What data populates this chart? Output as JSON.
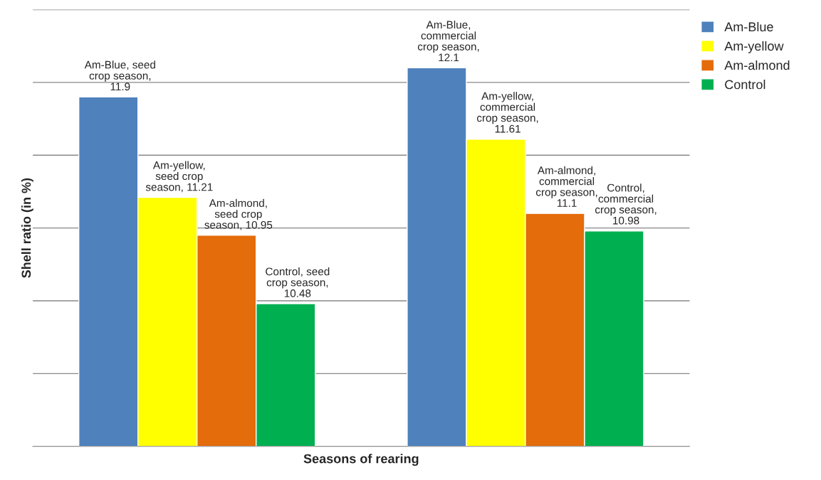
{
  "chart_data": {
    "type": "bar",
    "xlabel": "Seasons of rearing",
    "ylabel": "Shell ratio (in %)",
    "categories": [
      null,
      null
    ],
    "series": [
      {
        "name": "Am-Blue",
        "color": "#4f81bd",
        "values": [
          11.9,
          12.1
        ],
        "value_labels": [
          "Am-Blue, seed crop season, 11.9",
          "Am-Blue, commercial crop season, 12.1"
        ]
      },
      {
        "name": "Am-yellow",
        "color": "#ffff00",
        "values": [
          11.21,
          11.61
        ],
        "value_labels": [
          "Am-yellow, seed crop season, 11.21",
          "Am-yellow, commercial crop season, 11.61"
        ]
      },
      {
        "name": "Am-almond",
        "color": "#e46c0a",
        "values": [
          10.95,
          11.1
        ],
        "value_labels": [
          "Am-almond, seed crop season, 10.95",
          "Am-almond, commercial crop season, 11.1"
        ]
      },
      {
        "name": "Control",
        "color": "#00b050",
        "values": [
          10.48,
          10.98
        ],
        "value_labels": [
          "Control, seed crop season, 10.48",
          "Control, commercial crop season, 10.98"
        ]
      }
    ],
    "ylim": [
      9.5,
      12.5
    ],
    "yticks": [
      {
        "value": 9.5,
        "label": null
      },
      {
        "value": 10,
        "label": null
      },
      {
        "value": 10.5,
        "label": null
      },
      {
        "value": 11,
        "label": null
      },
      {
        "value": 11.5,
        "label": null
      },
      {
        "value": 12,
        "label": null
      },
      {
        "value": 12.5,
        "label": null
      }
    ],
    "grid": "y",
    "legend": "right"
  }
}
